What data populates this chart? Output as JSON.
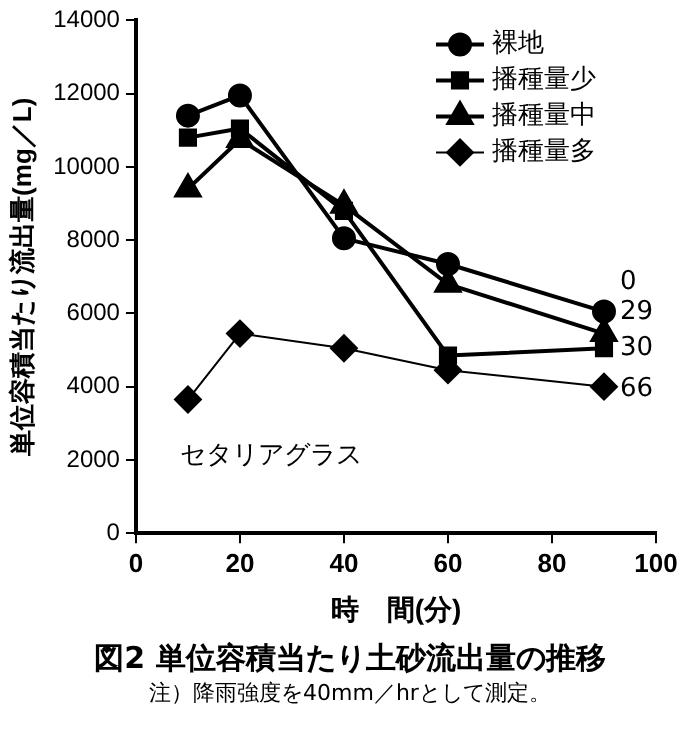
{
  "chart_data": {
    "type": "line",
    "title": "図2 単位容積当たり土砂流出量の推移",
    "xlabel": "時　間(分)",
    "ylabel": "単位容積当たり流出量(mg／L)",
    "x": [
      10,
      20,
      40,
      60,
      90
    ],
    "series": [
      {
        "name": "裸地",
        "color": "#000000",
        "marker": "circle",
        "values": [
          11400,
          11950,
          8050,
          7350,
          6050
        ]
      },
      {
        "name": "播種量少",
        "color": "#000000",
        "marker": "square",
        "values": [
          10800,
          11050,
          8800,
          4850,
          5050
        ]
      },
      {
        "name": "播種量中",
        "color": "#000000",
        "marker": "triangle",
        "values": [
          9400,
          10750,
          8950,
          6800,
          5450
        ]
      },
      {
        "name": "播種量多",
        "color": "#000000",
        "marker": "diamond",
        "values": [
          3650,
          5450,
          5050,
          4450,
          4000
        ]
      }
    ],
    "xlim": [
      0,
      100
    ],
    "xticks": [
      0,
      20,
      40,
      60,
      80,
      100
    ],
    "ylim": [
      0,
      14000
    ],
    "yticks": [
      0,
      2000,
      4000,
      6000,
      8000,
      10000,
      12000,
      14000
    ],
    "grid": false,
    "legend": "top right",
    "line_style": "solid",
    "annotations": [
      "0",
      "29",
      "30",
      "66",
      "セタリアグラス",
      "注）降雨強度を40mm／hrとして測定。"
    ]
  }
}
